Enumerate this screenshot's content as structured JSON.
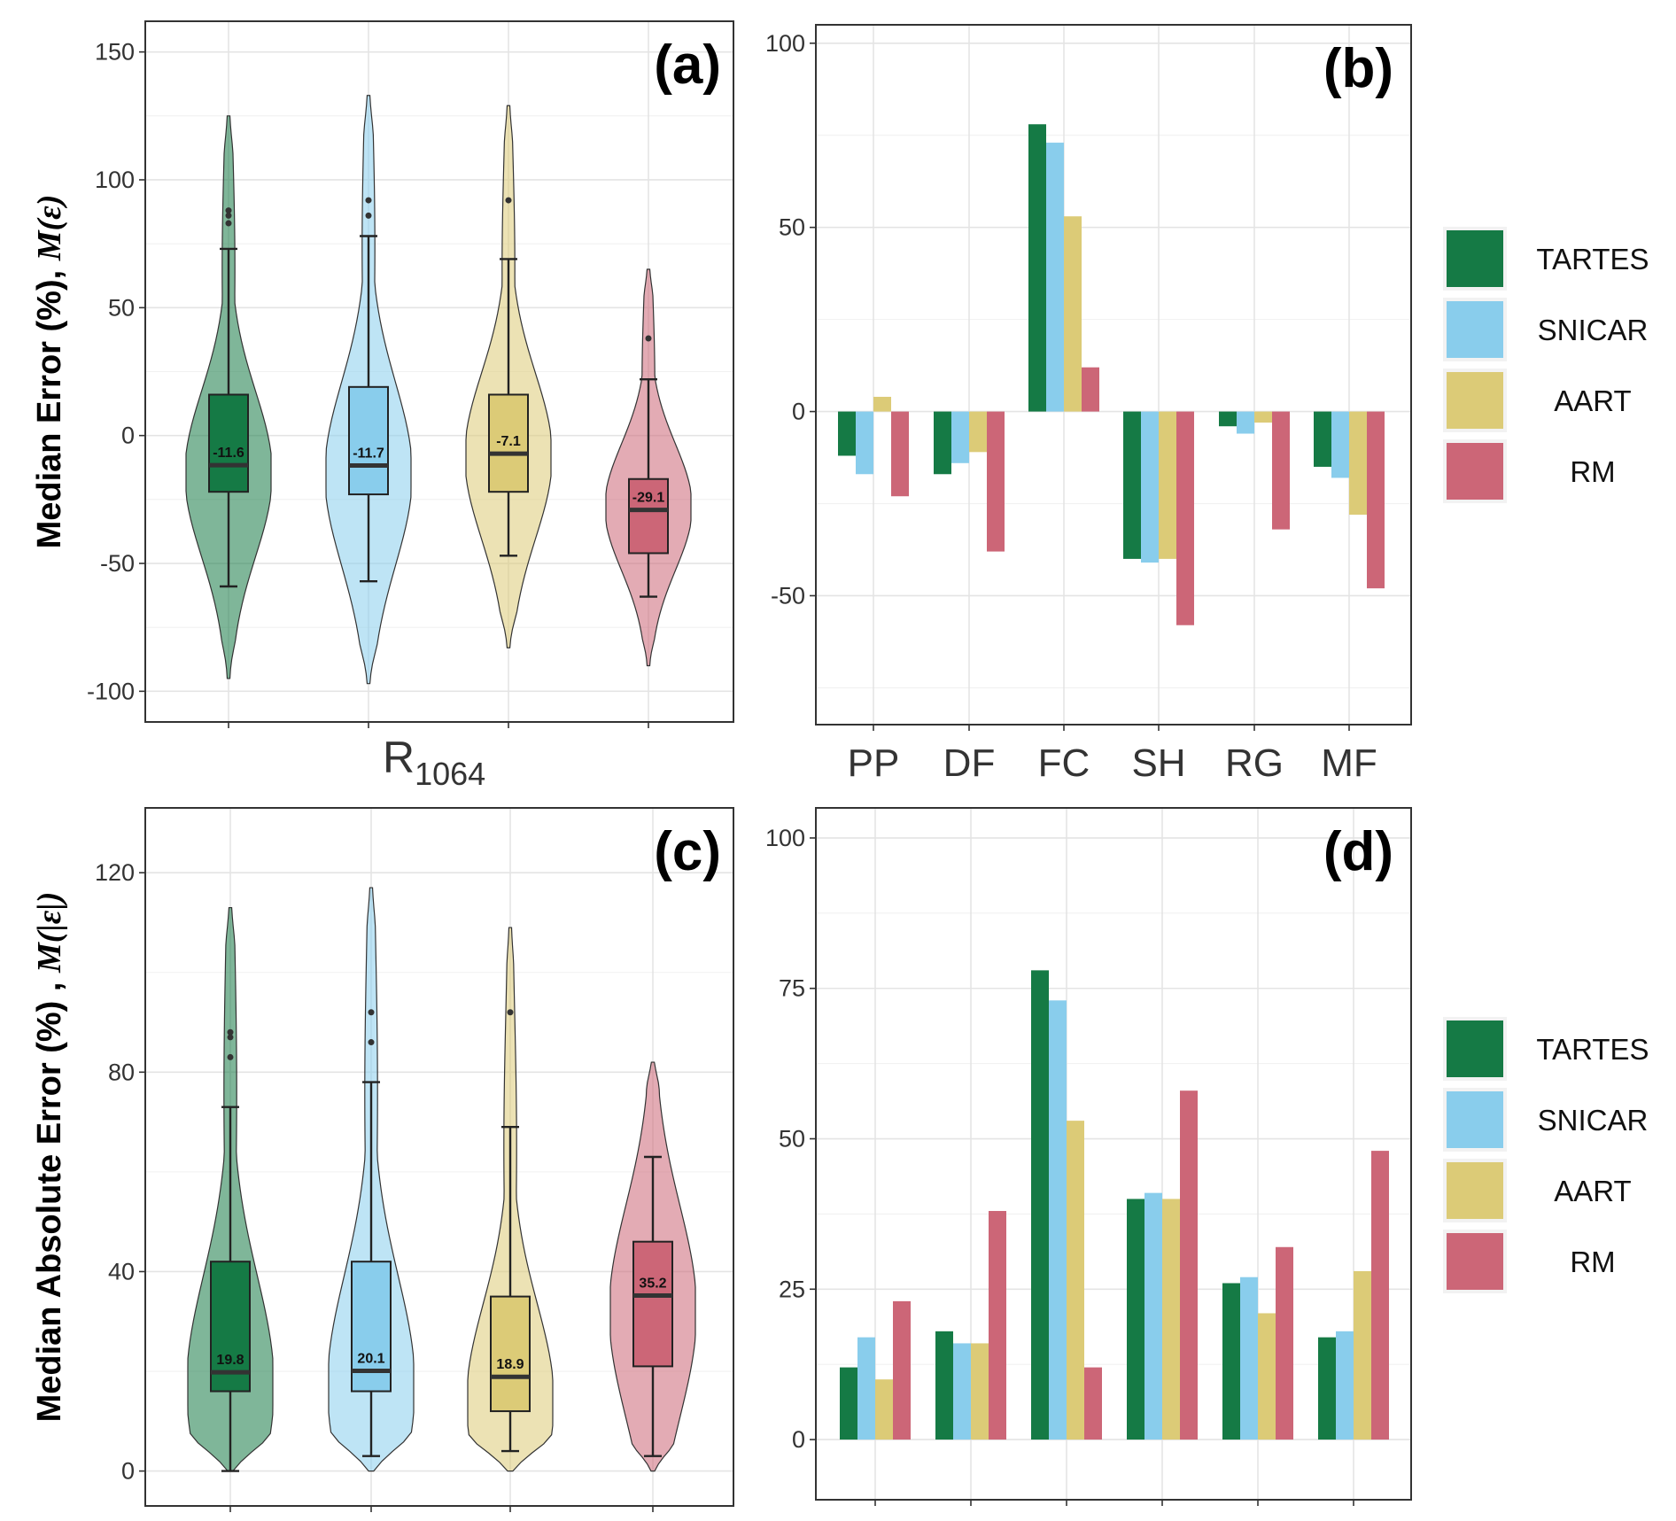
{
  "figure": {
    "colors": {
      "TARTES": "#157a45",
      "SNICAR": "#89cdec",
      "AART": "#dccb77",
      "RM": "#cc6677"
    },
    "legend": [
      "TARTES",
      "SNICAR",
      "AART",
      "RM"
    ]
  },
  "chart_data": [
    {
      "panel": "(a)",
      "type": "violin",
      "ylabel_main": "Median Error (%), ",
      "ylabel_math": "M(ε)",
      "xlabel_main": "R",
      "xlabel_sub": "1064",
      "ylim": [
        -112,
        162
      ],
      "yticks": [
        150,
        100,
        50,
        0,
        -50,
        -100
      ],
      "series": [
        {
          "name": "TARTES",
          "median_label": "-11.6",
          "median": -11.6,
          "q1": -22,
          "q3": 16,
          "whisker_low": -59,
          "whisker_high": 73,
          "min": -95,
          "max": 125,
          "outliers": [
            88,
            86,
            83
          ],
          "peak": -15
        },
        {
          "name": "SNICAR",
          "median_label": "-11.7",
          "median": -11.7,
          "q1": -23,
          "q3": 19,
          "whisker_low": -57,
          "whisker_high": 78,
          "min": -97,
          "max": 133,
          "outliers": [
            92,
            86
          ],
          "peak": -15
        },
        {
          "name": "AART",
          "median_label": "-7.1",
          "median": -7.1,
          "q1": -22,
          "q3": 16,
          "whisker_low": -47,
          "whisker_high": 69,
          "min": -83,
          "max": 129,
          "outliers": [
            92
          ],
          "peak": -8
        },
        {
          "name": "RM",
          "median_label": "-29.1",
          "median": -29.1,
          "q1": -46,
          "q3": -17,
          "whisker_low": -63,
          "whisker_high": 22,
          "min": -90,
          "max": 65,
          "outliers": [
            38
          ],
          "peak": -28
        }
      ]
    },
    {
      "panel": "(b)",
      "type": "bar",
      "categories": [
        "PP",
        "DF",
        "FC",
        "SH",
        "RG",
        "MF"
      ],
      "ylim": [
        -85,
        105
      ],
      "yticks": [
        100,
        50,
        0,
        -50
      ],
      "series": [
        {
          "name": "TARTES",
          "values": [
            -12,
            -17,
            78,
            -40,
            -4,
            -15
          ]
        },
        {
          "name": "SNICAR",
          "values": [
            -17,
            -14,
            73,
            -41,
            -6,
            -18
          ]
        },
        {
          "name": "AART",
          "values": [
            4,
            -11,
            53,
            -40,
            -3,
            -28
          ]
        },
        {
          "name": "RM",
          "values": [
            -23,
            -38,
            12,
            -58,
            -32,
            -48
          ]
        }
      ]
    },
    {
      "panel": "(c)",
      "type": "violin",
      "ylabel_main": "Median Absolute Error (%) , ",
      "ylabel_math": "M(|ε|)",
      "ylim": [
        -7,
        133
      ],
      "yticks": [
        120,
        80,
        40,
        0
      ],
      "series": [
        {
          "name": "TARTES",
          "median_label": "19.8",
          "median": 19.8,
          "q1": 16,
          "q3": 42,
          "whisker_low": 0,
          "whisker_high": 73,
          "min": 0,
          "max": 113,
          "outliers": [
            88,
            87,
            83
          ],
          "peak": 17
        },
        {
          "name": "SNICAR",
          "median_label": "20.1",
          "median": 20.1,
          "q1": 16,
          "q3": 42,
          "whisker_low": 3,
          "whisker_high": 78,
          "min": 0,
          "max": 117,
          "outliers": [
            92,
            86
          ],
          "peak": 17
        },
        {
          "name": "AART",
          "median_label": "18.9",
          "median": 18.9,
          "q1": 12,
          "q3": 35,
          "whisker_low": 4,
          "whisker_high": 69,
          "min": 0,
          "max": 109,
          "outliers": [
            92
          ],
          "peak": 14
        },
        {
          "name": "RM",
          "median_label": "35.2",
          "median": 35.2,
          "q1": 21,
          "q3": 46,
          "whisker_low": 3,
          "whisker_high": 63,
          "min": 0,
          "max": 82,
          "outliers": [],
          "peak": 32
        }
      ]
    },
    {
      "panel": "(d)",
      "type": "bar",
      "categories": [
        "PP",
        "DF",
        "FC",
        "SH",
        "RG",
        "MF"
      ],
      "ylim": [
        -10,
        105
      ],
      "yticks": [
        100,
        75,
        50,
        25,
        0
      ],
      "series": [
        {
          "name": "TARTES",
          "values": [
            12,
            18,
            78,
            40,
            26,
            17
          ]
        },
        {
          "name": "SNICAR",
          "values": [
            17,
            16,
            73,
            41,
            27,
            18
          ]
        },
        {
          "name": "AART",
          "values": [
            10,
            16,
            53,
            40,
            21,
            28
          ]
        },
        {
          "name": "RM",
          "values": [
            23,
            38,
            12,
            58,
            32,
            48
          ]
        }
      ]
    }
  ]
}
